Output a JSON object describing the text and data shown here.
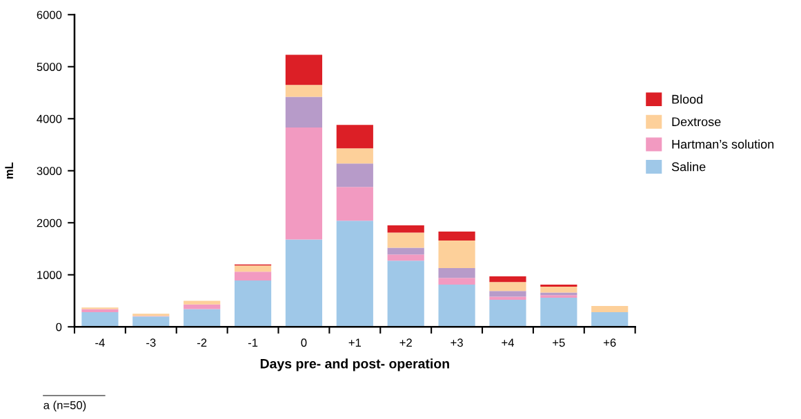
{
  "chart_data": {
    "type": "bar",
    "stacked": true,
    "xlabel": "Days pre- and post- operation",
    "ylabel": "mL",
    "categories": [
      "-4",
      "-3",
      "-2",
      "-1",
      "0",
      "+1",
      "+2",
      "+3",
      "+4",
      "+5",
      "+6"
    ],
    "series": [
      {
        "name": "Saline",
        "color": "#9fc8e8",
        "values": [
          280,
          200,
          340,
          890,
          1680,
          2040,
          1270,
          810,
          520,
          560,
          280
        ]
      },
      {
        "name": "Hartman’s solution",
        "color": "#f29ac1",
        "values": [
          60,
          10,
          90,
          170,
          2150,
          650,
          120,
          130,
          60,
          50,
          0
        ]
      },
      {
        "color": "#b79bc9",
        "values": [
          0,
          0,
          0,
          0,
          590,
          450,
          130,
          190,
          110,
          50,
          0
        ]
      },
      {
        "name": "Dextrose",
        "color": "#fdd09a",
        "values": [
          30,
          40,
          70,
          120,
          230,
          290,
          290,
          530,
          170,
          110,
          120
        ]
      },
      {
        "name": "Blood",
        "color": "#dc1f26",
        "values": [
          0,
          0,
          0,
          20,
          580,
          450,
          140,
          170,
          110,
          40,
          0
        ]
      }
    ],
    "ylim": [
      0,
      6000
    ],
    "yticks": [
      0,
      1000,
      2000,
      3000,
      4000,
      5000,
      6000
    ],
    "grid": false,
    "legend": "right",
    "annotations": [
      "a (n=50)"
    ]
  }
}
